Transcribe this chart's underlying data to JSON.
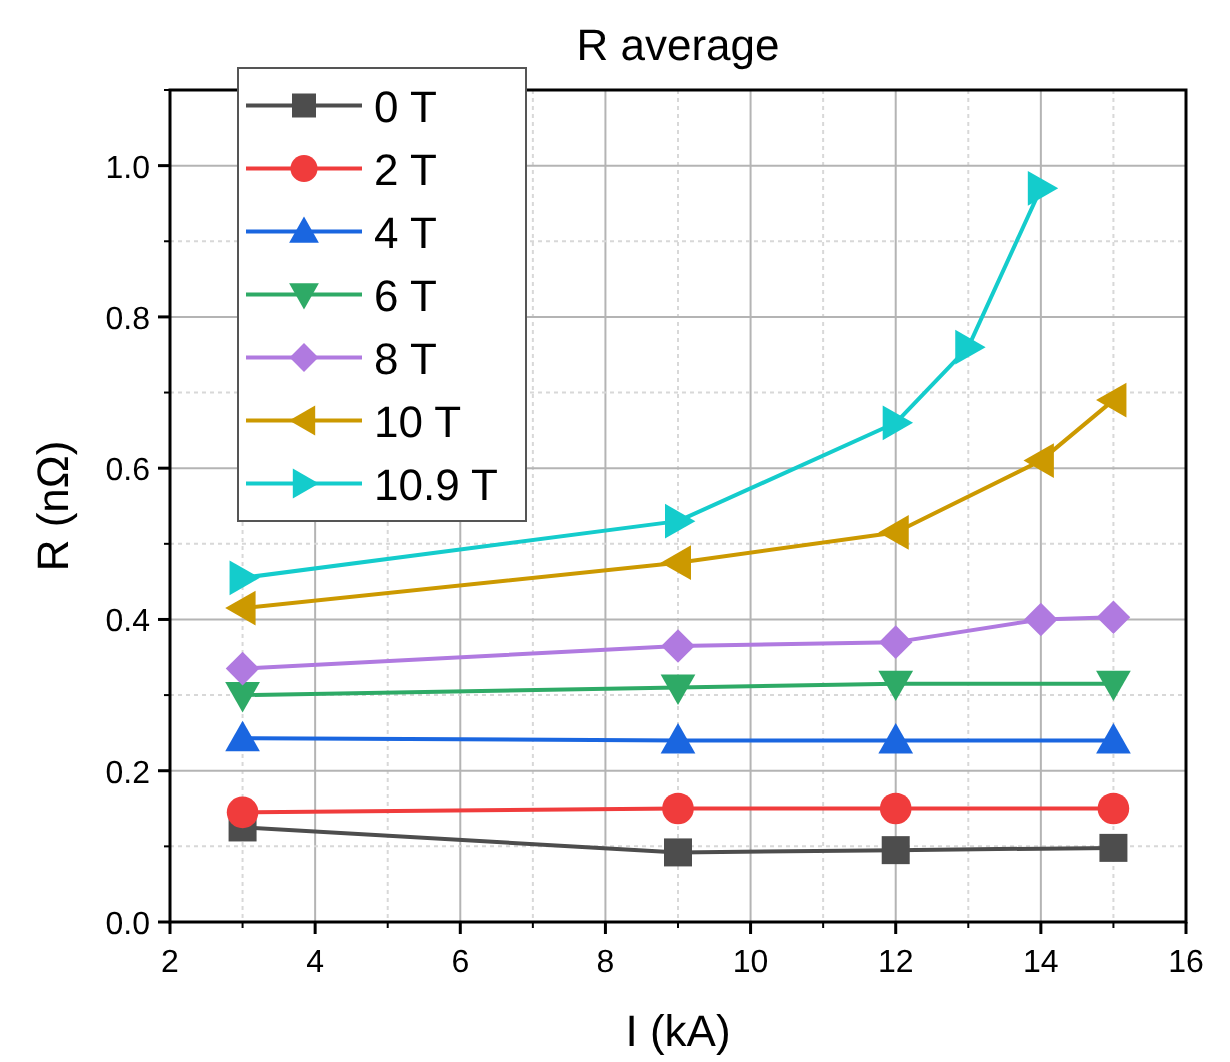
{
  "chart_data": {
    "type": "line",
    "title": "R average",
    "xlabel": "I (kA)",
    "ylabel": "R (nΩ)",
    "xlim": [
      2,
      16
    ],
    "xticks": [
      2,
      4,
      6,
      8,
      10,
      12,
      14,
      16
    ],
    "ylim": [
      0,
      1.1
    ],
    "yticks": [
      {
        "value": 0,
        "label": "0.0"
      },
      {
        "value": 0.2,
        "label": "0.2"
      },
      {
        "value": 0.4,
        "label": "0.4"
      },
      {
        "value": 0.6,
        "label": "0.6"
      },
      {
        "value": 0.8,
        "label": "0.8"
      },
      {
        "value": 1,
        "label": "1.0"
      }
    ],
    "grid": true,
    "legend": "top left",
    "series": [
      {
        "name": "0 T",
        "color": "#4d4d4d",
        "marker": "square",
        "x": [
          3,
          9,
          12,
          15
        ],
        "values": [
          0.125,
          0.092,
          0.095,
          0.098
        ]
      },
      {
        "name": "2 T",
        "color": "#f03c3c",
        "marker": "circle",
        "x": [
          3,
          9,
          12,
          15
        ],
        "values": [
          0.145,
          0.15,
          0.15,
          0.15
        ]
      },
      {
        "name": "4 T",
        "color": "#1a66e0",
        "marker": "triangle",
        "x": [
          3,
          9,
          12,
          15
        ],
        "values": [
          0.243,
          0.24,
          0.24,
          0.24
        ]
      },
      {
        "name": "6 T",
        "color": "#2eaa66",
        "marker": "triangle-down",
        "x": [
          3,
          9,
          12,
          15
        ],
        "values": [
          0.3,
          0.31,
          0.315,
          0.315
        ]
      },
      {
        "name": "8 T",
        "color": "#b07ae0",
        "marker": "diamond",
        "x": [
          3,
          9,
          12,
          14,
          15
        ],
        "values": [
          0.335,
          0.365,
          0.37,
          0.4,
          0.403
        ]
      },
      {
        "name": "10 T",
        "color": "#cc9900",
        "marker": "triangle-left",
        "x": [
          3,
          9,
          12,
          14,
          15
        ],
        "values": [
          0.415,
          0.475,
          0.515,
          0.61,
          0.69
        ]
      },
      {
        "name": "10.9 T",
        "color": "#14cccc",
        "marker": "triangle-right",
        "x": [
          3,
          9,
          12,
          13,
          14
        ],
        "values": [
          0.455,
          0.53,
          0.66,
          0.76,
          0.97
        ]
      }
    ]
  }
}
